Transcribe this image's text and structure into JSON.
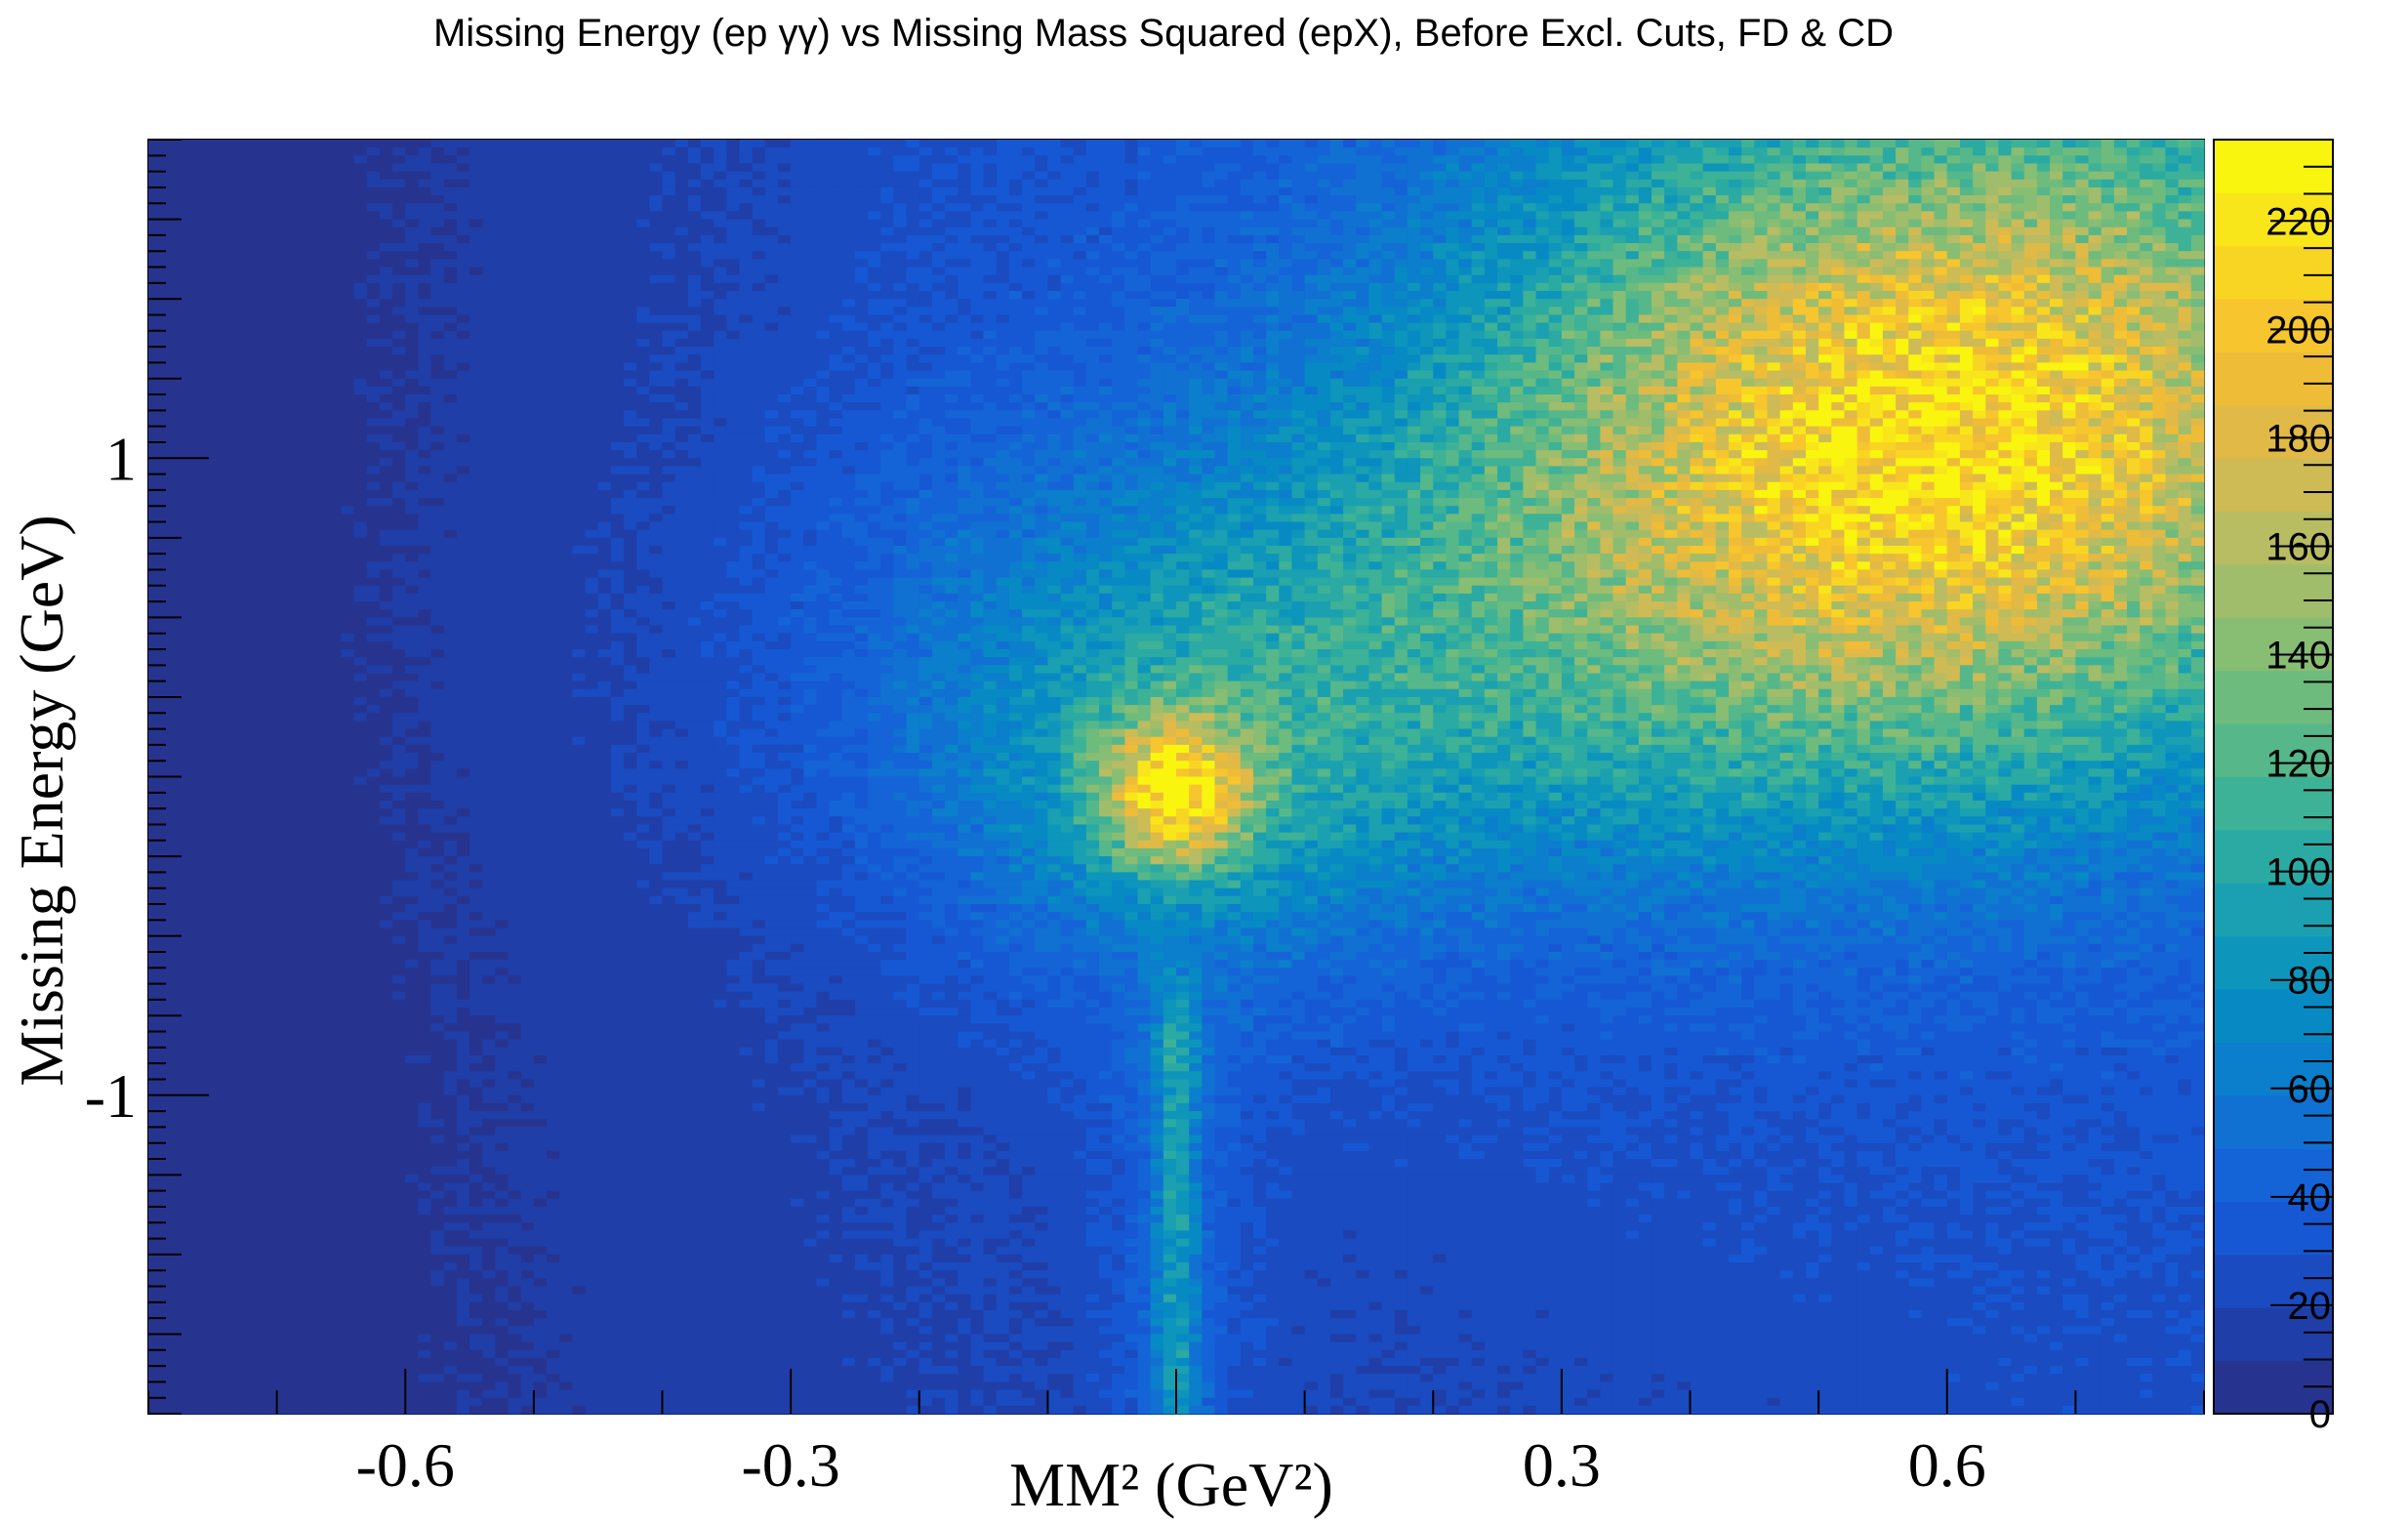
{
  "chart_data": {
    "type": "heatmap",
    "title": "Missing Energy (ep  γγ) vs Missing Mass Squared (epX), Before Excl. Cuts, FD & CD",
    "xlabel": "MM² (GeV²)",
    "ylabel": "Missing Energy (GeV)",
    "xlim": [
      -0.8,
      0.8
    ],
    "ylim": [
      -2.0,
      2.0
    ],
    "zlim": [
      0,
      235
    ],
    "x_tick_labels": [
      "-0.6",
      "-0.3",
      "0.3",
      "0.6"
    ],
    "x_tick_values": [
      -0.6,
      -0.3,
      0.3,
      0.6
    ],
    "y_tick_labels": [
      "1",
      "-1"
    ],
    "y_tick_values": [
      1,
      -1
    ],
    "z_tick_labels": [
      "0",
      "20",
      "40",
      "60",
      "80",
      "100",
      "120",
      "140",
      "160",
      "180",
      "200",
      "220"
    ],
    "z_tick_values": [
      0,
      20,
      40,
      60,
      80,
      100,
      120,
      140,
      160,
      180,
      200,
      220
    ],
    "palette": [
      "#26348f",
      "#203ea8",
      "#1a4bc0",
      "#1658d4",
      "#1464d8",
      "#1171d2",
      "#0b7ecc",
      "#078ac4",
      "#0d95bb",
      "#1aa0b0",
      "#2aaaa3",
      "#3db296",
      "#55b78a",
      "#6ebb7e",
      "#88bd74",
      "#a0bd6b",
      "#b8bc62",
      "#cebb55",
      "#e1b947",
      "#efbc38",
      "#f7c52d",
      "#f9d523",
      "#f8e61b",
      "#f9f50f"
    ],
    "features": [
      {
        "name": "peak",
        "x": 0.0,
        "y": -0.05,
        "z": 235
      },
      {
        "name": "broad-maximum",
        "x": 0.6,
        "y": 1.1,
        "z": 200
      },
      {
        "name": "vertical-band",
        "x": 0.0,
        "y": [
          -2.0,
          -0.5
        ],
        "z": 110
      }
    ],
    "grid": false,
    "colorbar": "right"
  }
}
